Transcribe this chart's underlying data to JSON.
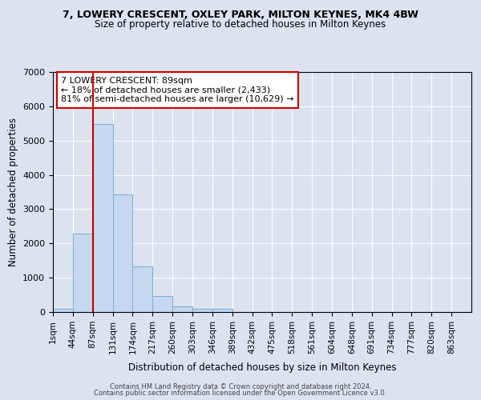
{
  "title1": "7, LOWERY CRESCENT, OXLEY PARK, MILTON KEYNES, MK4 4BW",
  "title2": "Size of property relative to detached houses in Milton Keynes",
  "xlabel": "Distribution of detached houses by size in Milton Keynes",
  "ylabel": "Number of detached properties",
  "bin_labels": [
    "1sqm",
    "44sqm",
    "87sqm",
    "131sqm",
    "174sqm",
    "217sqm",
    "260sqm",
    "303sqm",
    "346sqm",
    "389sqm",
    "432sqm",
    "475sqm",
    "518sqm",
    "561sqm",
    "604sqm",
    "648sqm",
    "691sqm",
    "734sqm",
    "777sqm",
    "820sqm",
    "863sqm"
  ],
  "bar_heights": [
    100,
    2280,
    5490,
    3440,
    1340,
    460,
    170,
    90,
    90,
    0,
    0,
    0,
    0,
    0,
    0,
    0,
    0,
    0,
    0,
    0,
    0
  ],
  "bar_color": "#c5d8f0",
  "bar_edge_color": "#7aacd4",
  "vline_x": 2,
  "vline_color": "#cc0000",
  "annotation_line1": "7 LOWERY CRESCENT: 89sqm",
  "annotation_line2": "← 18% of detached houses are smaller (2,433)",
  "annotation_line3": "81% of semi-detached houses are larger (10,629) →",
  "annotation_box_color": "#ffffff",
  "annotation_box_edge": "#cc0000",
  "ylim": [
    0,
    7000
  ],
  "yticks": [
    0,
    1000,
    2000,
    3000,
    4000,
    5000,
    6000,
    7000
  ],
  "bg_color": "#dce3ef",
  "plot_bg_color": "#dce3ef",
  "grid_color": "#ffffff",
  "footer_text1": "Contains HM Land Registry data © Crown copyright and database right 2024.",
  "footer_text2": "Contains public sector information licensed under the Open Government Licence v3.0."
}
